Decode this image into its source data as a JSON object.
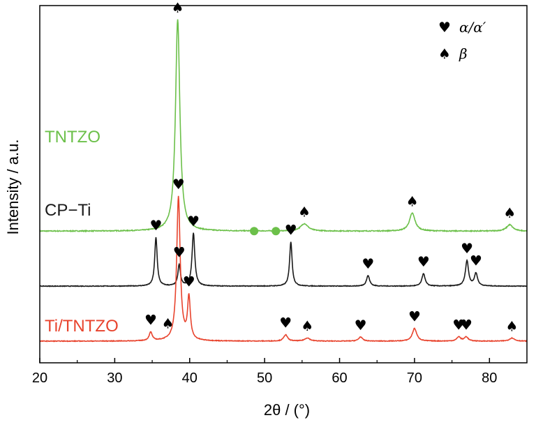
{
  "chart_data": {
    "type": "line",
    "xlabel": "2θ / (°)",
    "ylabel": "Intensity / a.u.",
    "xlim": [
      20,
      85
    ],
    "xticks": [
      20,
      30,
      40,
      50,
      60,
      70,
      80
    ],
    "yticks_shown": false,
    "grid": false,
    "legend": {
      "placement": "top-right",
      "entries": [
        {
          "symbol": "heart",
          "glyph": "♥",
          "label": "α/α′"
        },
        {
          "symbol": "spade",
          "glyph": "♠",
          "label": "β"
        }
      ]
    },
    "series": [
      {
        "name": "TNTZO",
        "color": "#6cc04a",
        "baseline": 0.52,
        "noise": 0.004,
        "peaks": [
          {
            "x": 38.4,
            "height": 1.0,
            "width": 0.35
          },
          {
            "x": 55.3,
            "height": 0.035,
            "width": 0.6
          },
          {
            "x": 69.7,
            "height": 0.085,
            "width": 0.45
          },
          {
            "x": 82.7,
            "height": 0.03,
            "width": 0.5
          }
        ],
        "markers": [
          {
            "symbol": "spade",
            "x": 38.4
          },
          {
            "symbol": "spade",
            "x": 55.3
          },
          {
            "symbol": "spade",
            "x": 69.7
          },
          {
            "symbol": "spade",
            "x": 82.7
          }
        ],
        "dots": [
          48.6,
          51.5
        ]
      },
      {
        "name": "CP−Ti",
        "color": "#1a1a1a",
        "baseline": 0.26,
        "noise": 0.003,
        "peaks": [
          {
            "x": 35.5,
            "height": 0.23,
            "width": 0.2
          },
          {
            "x": 38.6,
            "height": 0.1,
            "width": 0.2
          },
          {
            "x": 40.5,
            "height": 0.25,
            "width": 0.22
          },
          {
            "x": 53.5,
            "height": 0.21,
            "width": 0.2
          },
          {
            "x": 63.8,
            "height": 0.05,
            "width": 0.25
          },
          {
            "x": 71.2,
            "height": 0.06,
            "width": 0.25
          },
          {
            "x": 77.0,
            "height": 0.12,
            "width": 0.25
          },
          {
            "x": 78.2,
            "height": 0.06,
            "width": 0.25
          }
        ],
        "markers": [
          {
            "symbol": "heart",
            "x": 35.5
          },
          {
            "symbol": "heart",
            "x": 38.6
          },
          {
            "symbol": "heart",
            "x": 40.5
          },
          {
            "symbol": "heart",
            "x": 53.5
          },
          {
            "symbol": "heart",
            "x": 63.8
          },
          {
            "symbol": "heart",
            "x": 71.2
          },
          {
            "symbol": "heart",
            "x": 77.0
          },
          {
            "symbol": "heart",
            "x": 78.2
          }
        ]
      },
      {
        "name": "Ti/TNTZO",
        "color": "#e8432d",
        "baseline": 0.0,
        "noise": 0.003,
        "peaks": [
          {
            "x": 34.8,
            "height": 0.04,
            "width": 0.25
          },
          {
            "x": 38.5,
            "height": 0.68,
            "width": 0.28
          },
          {
            "x": 39.9,
            "height": 0.2,
            "width": 0.22
          },
          {
            "x": 52.8,
            "height": 0.03,
            "width": 0.3
          },
          {
            "x": 55.7,
            "height": 0.015,
            "width": 0.4
          },
          {
            "x": 62.8,
            "height": 0.02,
            "width": 0.3
          },
          {
            "x": 70.0,
            "height": 0.06,
            "width": 0.35
          },
          {
            "x": 75.9,
            "height": 0.02,
            "width": 0.3
          },
          {
            "x": 76.9,
            "height": 0.02,
            "width": 0.3
          },
          {
            "x": 83.0,
            "height": 0.015,
            "width": 0.4
          }
        ],
        "markers": [
          {
            "symbol": "heart",
            "x": 34.8
          },
          {
            "symbol": "spade",
            "x": 37.1
          },
          {
            "symbol": "heart",
            "x": 38.5
          },
          {
            "symbol": "heart",
            "x": 39.9
          },
          {
            "symbol": "heart",
            "x": 52.8
          },
          {
            "symbol": "spade",
            "x": 55.7
          },
          {
            "symbol": "heart",
            "x": 62.8
          },
          {
            "symbol": "heart",
            "x": 70.0
          },
          {
            "symbol": "heart",
            "x": 75.9
          },
          {
            "symbol": "heart",
            "x": 76.9
          },
          {
            "symbol": "spade",
            "x": 83.0
          }
        ]
      }
    ]
  }
}
